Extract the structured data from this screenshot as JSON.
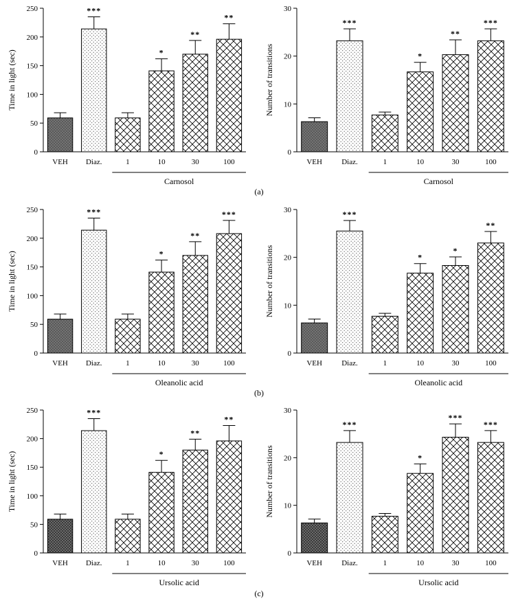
{
  "chart_data": [
    {
      "type": "bar",
      "ylabel": "Time in light (sec)",
      "ylim": [
        0,
        250
      ],
      "yticks": [
        0,
        50,
        100,
        150,
        200,
        250
      ],
      "categories": [
        "VEH",
        "Diaz.",
        "1",
        "10",
        "30",
        "100"
      ],
      "values": [
        59,
        214,
        59,
        141,
        170,
        196
      ],
      "errors": [
        9,
        21,
        9,
        21,
        24,
        27
      ],
      "significance": [
        "",
        "***",
        "",
        "*",
        "**",
        "**"
      ],
      "group_label": "Carnosol",
      "fills": [
        "dark-dots",
        "light-dots",
        "crosshatch",
        "crosshatch",
        "crosshatch",
        "crosshatch"
      ]
    },
    {
      "type": "bar",
      "ylabel": "Number of transitions",
      "ylim": [
        0,
        30
      ],
      "yticks": [
        0,
        10,
        20,
        30
      ],
      "categories": [
        "VEH",
        "Diaz.",
        "1",
        "10",
        "30",
        "100"
      ],
      "values": [
        6.3,
        23.2,
        7.7,
        16.7,
        20.3,
        23.2
      ],
      "errors": [
        0.8,
        2.5,
        0.6,
        2.0,
        3.1,
        2.5
      ],
      "significance": [
        "",
        "***",
        "",
        "*",
        "**",
        "***"
      ],
      "group_label": "Carnosol",
      "fills": [
        "dark-dots",
        "light-dots",
        "crosshatch",
        "crosshatch",
        "crosshatch",
        "crosshatch"
      ]
    },
    {
      "type": "bar",
      "ylabel": "Time in light (sec)",
      "ylim": [
        0,
        250
      ],
      "yticks": [
        0,
        50,
        100,
        150,
        200,
        250
      ],
      "categories": [
        "VEH",
        "Diaz.",
        "1",
        "10",
        "30",
        "100"
      ],
      "values": [
        59,
        214,
        59,
        141,
        170,
        208
      ],
      "errors": [
        9,
        21,
        9,
        21,
        24,
        23
      ],
      "significance": [
        "",
        "***",
        "",
        "*",
        "**",
        "***"
      ],
      "group_label": "Oleanolic acid",
      "fills": [
        "dark-dots",
        "light-dots",
        "crosshatch",
        "crosshatch",
        "crosshatch",
        "crosshatch"
      ]
    },
    {
      "type": "bar",
      "ylabel": "Number of transitions",
      "ylim": [
        0,
        30
      ],
      "yticks": [
        0,
        10,
        20,
        30
      ],
      "categories": [
        "VEH",
        "Diaz.",
        "1",
        "10",
        "30",
        "100"
      ],
      "values": [
        6.3,
        25.5,
        7.7,
        16.7,
        18.3,
        23.0
      ],
      "errors": [
        0.8,
        2.2,
        0.6,
        2.0,
        1.8,
        2.4
      ],
      "significance": [
        "",
        "***",
        "",
        "*",
        "*",
        "**"
      ],
      "group_label": "Oleanolic acid",
      "fills": [
        "dark-dots",
        "light-dots",
        "crosshatch",
        "crosshatch",
        "crosshatch",
        "crosshatch"
      ]
    },
    {
      "type": "bar",
      "ylabel": "Time in light (sec)",
      "ylim": [
        0,
        250
      ],
      "yticks": [
        0,
        50,
        100,
        150,
        200,
        250
      ],
      "categories": [
        "VEH",
        "Diaz.",
        "1",
        "10",
        "30",
        "100"
      ],
      "values": [
        59,
        214,
        59,
        141,
        180,
        196
      ],
      "errors": [
        9,
        21,
        9,
        21,
        19,
        27
      ],
      "significance": [
        "",
        "***",
        "",
        "*",
        "**",
        "**"
      ],
      "group_label": "Ursolic acid",
      "fills": [
        "dark-check",
        "light-dots",
        "crosshatch",
        "crosshatch",
        "crosshatch",
        "crosshatch"
      ]
    },
    {
      "type": "bar",
      "ylabel": "Number of transitions",
      "ylim": [
        0,
        30
      ],
      "yticks": [
        0,
        10,
        20,
        30
      ],
      "categories": [
        "VEH",
        "Diaz.",
        "1",
        "10",
        "30",
        "100"
      ],
      "values": [
        6.3,
        23.2,
        7.7,
        16.7,
        24.3,
        23.2
      ],
      "errors": [
        0.8,
        2.5,
        0.6,
        2.0,
        2.8,
        2.5
      ],
      "significance": [
        "",
        "***",
        "",
        "*",
        "***",
        "***"
      ],
      "group_label": "Ursolic acid",
      "fills": [
        "dark-check",
        "light-dots",
        "crosshatch",
        "crosshatch",
        "crosshatch",
        "crosshatch"
      ]
    }
  ],
  "panel_labels": [
    "(a)",
    "(b)",
    "(c)"
  ]
}
